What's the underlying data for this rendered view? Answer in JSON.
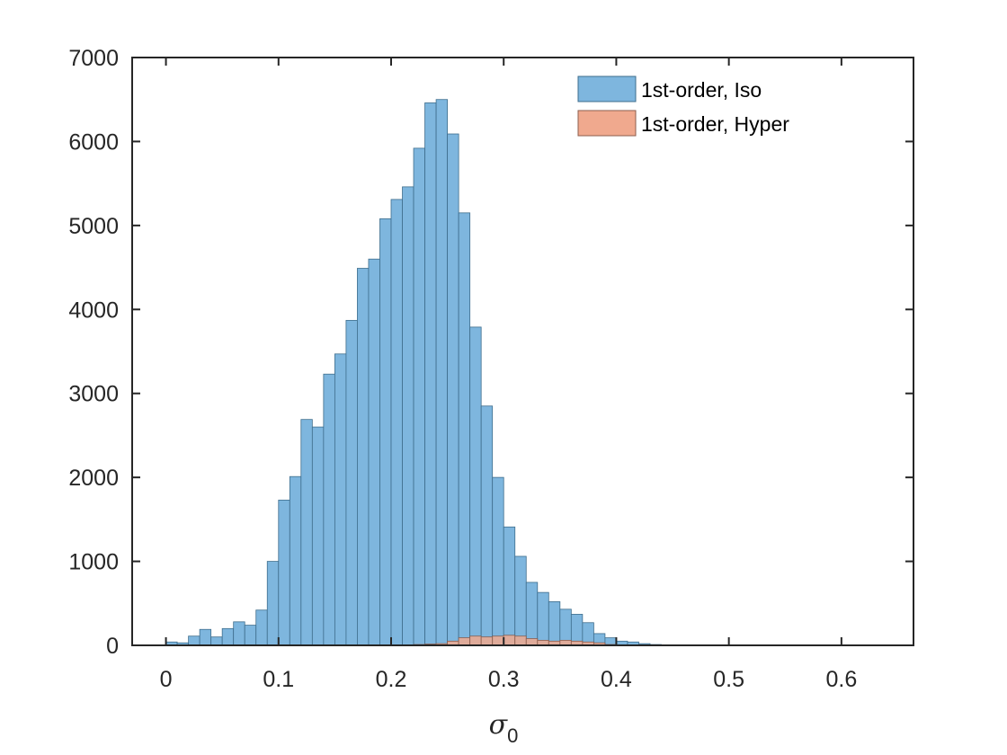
{
  "chart_data": {
    "type": "bar",
    "chart_subtype": "histogram",
    "xlabel": "σ",
    "xlabel_subscript": "0",
    "ylabel": "",
    "title": "",
    "xlim": [
      -0.03,
      0.664
    ],
    "ylim": [
      0,
      7000
    ],
    "xticks": [
      "0",
      "0.1",
      "0.2",
      "0.3",
      "0.4",
      "0.5",
      "0.6"
    ],
    "xtick_values": [
      0,
      0.1,
      0.2,
      0.3,
      0.4,
      0.5,
      0.6
    ],
    "yticks": [
      "0",
      "1000",
      "2000",
      "3000",
      "4000",
      "5000",
      "6000",
      "7000"
    ],
    "ytick_values": [
      0,
      1000,
      2000,
      3000,
      4000,
      5000,
      6000,
      7000
    ],
    "grid": false,
    "legend_position": "top-right",
    "bin_edges_start": 0,
    "bin_width": 0.01,
    "series": [
      {
        "name": "1st-order, Iso",
        "color": "#7eb6de",
        "edge_color": "#3e6d8c",
        "values": [
          40,
          30,
          110,
          190,
          100,
          200,
          280,
          240,
          420,
          1000,
          1730,
          2010,
          2690,
          2600,
          3230,
          3470,
          3870,
          4490,
          4600,
          5080,
          5310,
          5460,
          5920,
          6460,
          6500,
          6090,
          5150,
          3790,
          2850,
          2000,
          1410,
          1060,
          750,
          630,
          520,
          430,
          370,
          270,
          140,
          90,
          50,
          40,
          20,
          10,
          5,
          3,
          2,
          1,
          1,
          1,
          1,
          1,
          1,
          1,
          1,
          1,
          1,
          1,
          1,
          1,
          1,
          1,
          1
        ]
      },
      {
        "name": "1st-order, Hyper",
        "color": "#f0a98e",
        "edge_color": "#8c5e4e",
        "values": [
          0,
          0,
          0,
          0,
          0,
          0,
          0,
          0,
          0,
          0,
          0,
          0,
          0,
          0,
          0,
          0,
          0,
          0,
          0,
          0,
          0,
          0,
          10,
          15,
          20,
          50,
          90,
          110,
          100,
          110,
          120,
          110,
          80,
          60,
          50,
          60,
          50,
          40,
          30,
          10,
          5,
          0,
          0,
          0,
          0,
          0,
          0,
          0,
          0,
          0,
          0,
          0,
          0,
          0,
          0,
          0,
          0,
          0,
          0,
          0,
          0,
          0,
          0
        ]
      }
    ]
  }
}
